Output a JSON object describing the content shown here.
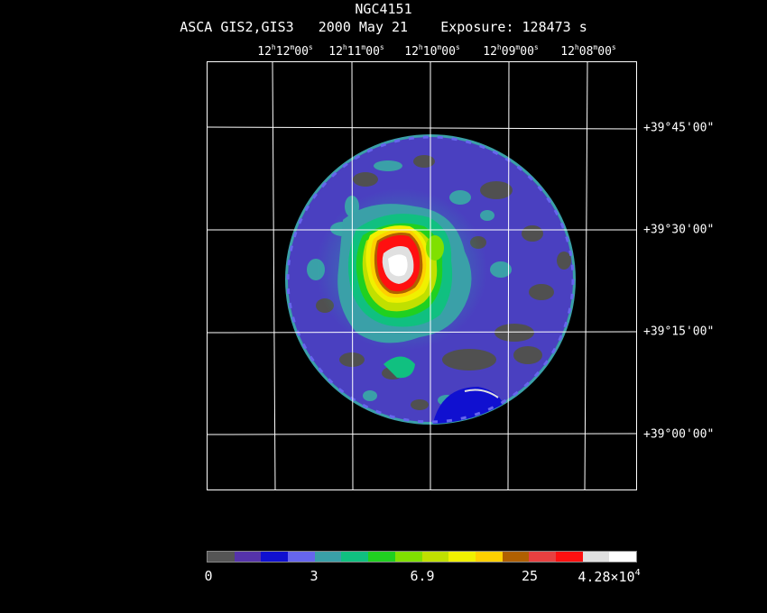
{
  "object_name": "NGC4151",
  "subtitle": "ASCA GIS2,GIS3   2000 May 21    Exposure: 128473 s",
  "ra_labels": [
    {
      "h": "12",
      "m": "12",
      "s": "00"
    },
    {
      "h": "12",
      "m": "11",
      "s": "00"
    },
    {
      "h": "12",
      "m": "10",
      "s": "00"
    },
    {
      "h": "12",
      "m": "09",
      "s": "00"
    },
    {
      "h": "12",
      "m": "08",
      "s": "00"
    }
  ],
  "dec_labels": [
    "+39°45'00\"",
    "+39°30'00\"",
    "+39°15'00\"",
    "+39°00'00\""
  ],
  "colorbar": {
    "colors": [
      "#555555",
      "#5533aa",
      "#1010d0",
      "#6666ee",
      "#3aa0a8",
      "#10c080",
      "#20d020",
      "#80e000",
      "#c0e000",
      "#f0f000",
      "#ffd000",
      "#b06000",
      "#e84040",
      "#ff1010",
      "#e0e0e0",
      "#ffffff"
    ],
    "labels": {
      "min": "0",
      "l1": "3",
      "l2": "6.9",
      "l3": "25",
      "max_mantissa": "4.28×10",
      "max_exp": "4"
    }
  },
  "colors": {
    "background": "#000000",
    "detector": "#4a40c0",
    "grid": "#ffffff"
  }
}
